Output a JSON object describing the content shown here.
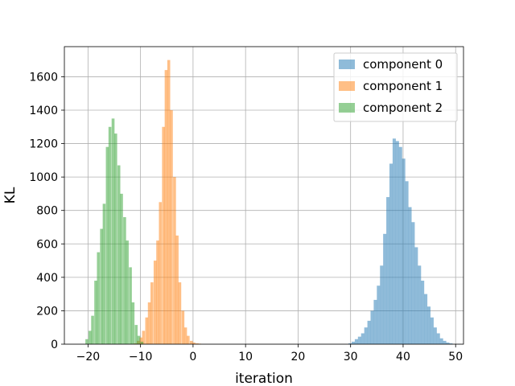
{
  "chart_data": {
    "type": "bar",
    "xlabel": "iteration",
    "ylabel": "KL",
    "xlim": [
      -24.5,
      51.5
    ],
    "ylim": [
      0,
      1780
    ],
    "xticks": [
      -20,
      -10,
      0,
      10,
      20,
      30,
      40,
      50
    ],
    "yticks": [
      0,
      200,
      400,
      600,
      800,
      1000,
      1200,
      1400,
      1600
    ],
    "grid": true,
    "legend_position": "top-right",
    "series": [
      {
        "name": "component 0",
        "color": "#1f77b4",
        "bin_width": 0.62,
        "bins": [
          [
            29.6,
            5
          ],
          [
            30.2,
            15
          ],
          [
            30.8,
            30
          ],
          [
            31.4,
            45
          ],
          [
            32.0,
            65
          ],
          [
            32.6,
            100
          ],
          [
            33.2,
            140
          ],
          [
            33.8,
            200
          ],
          [
            34.4,
            265
          ],
          [
            35.0,
            350
          ],
          [
            35.6,
            470
          ],
          [
            36.2,
            660
          ],
          [
            36.8,
            880
          ],
          [
            37.4,
            1080
          ],
          [
            38.0,
            1230
          ],
          [
            38.6,
            1215
          ],
          [
            39.2,
            1180
          ],
          [
            39.8,
            1110
          ],
          [
            40.4,
            975
          ],
          [
            41.0,
            820
          ],
          [
            41.6,
            730
          ],
          [
            42.2,
            580
          ],
          [
            42.8,
            470
          ],
          [
            43.4,
            380
          ],
          [
            44.0,
            300
          ],
          [
            44.6,
            225
          ],
          [
            45.2,
            160
          ],
          [
            45.8,
            100
          ],
          [
            46.4,
            65
          ],
          [
            47.0,
            35
          ],
          [
            47.6,
            20
          ],
          [
            48.2,
            10
          ],
          [
            48.8,
            5
          ]
        ]
      },
      {
        "name": "component 1",
        "color": "#ff7f0e",
        "bin_width": 0.55,
        "bins": [
          [
            -11.3,
            5
          ],
          [
            -10.7,
            20
          ],
          [
            -10.2,
            40
          ],
          [
            -9.7,
            80
          ],
          [
            -9.1,
            160
          ],
          [
            -8.6,
            250
          ],
          [
            -8.1,
            370
          ],
          [
            -7.5,
            500
          ],
          [
            -7.0,
            620
          ],
          [
            -6.5,
            850
          ],
          [
            -5.9,
            1300
          ],
          [
            -5.4,
            1640
          ],
          [
            -4.9,
            1700
          ],
          [
            -4.4,
            1400
          ],
          [
            -3.8,
            1000
          ],
          [
            -3.3,
            650
          ],
          [
            -2.8,
            370
          ],
          [
            -2.2,
            200
          ],
          [
            -1.7,
            100
          ],
          [
            -1.2,
            50
          ],
          [
            -0.6,
            20
          ],
          [
            -0.1,
            10
          ],
          [
            0.5,
            5
          ],
          [
            1.0,
            3
          ]
        ]
      },
      {
        "name": "component 2",
        "color": "#2ca02c",
        "bin_width": 0.55,
        "bins": [
          [
            -20.5,
            30
          ],
          [
            -19.9,
            80
          ],
          [
            -19.4,
            170
          ],
          [
            -18.8,
            380
          ],
          [
            -18.3,
            550
          ],
          [
            -17.7,
            690
          ],
          [
            -17.2,
            840
          ],
          [
            -16.6,
            1180
          ],
          [
            -16.1,
            1300
          ],
          [
            -15.5,
            1350
          ],
          [
            -15.0,
            1260
          ],
          [
            -14.4,
            1070
          ],
          [
            -13.9,
            900
          ],
          [
            -13.3,
            760
          ],
          [
            -12.8,
            620
          ],
          [
            -12.2,
            460
          ],
          [
            -11.7,
            250
          ],
          [
            -11.1,
            115
          ],
          [
            -10.6,
            50
          ],
          [
            -10.0,
            15
          ]
        ]
      }
    ]
  }
}
